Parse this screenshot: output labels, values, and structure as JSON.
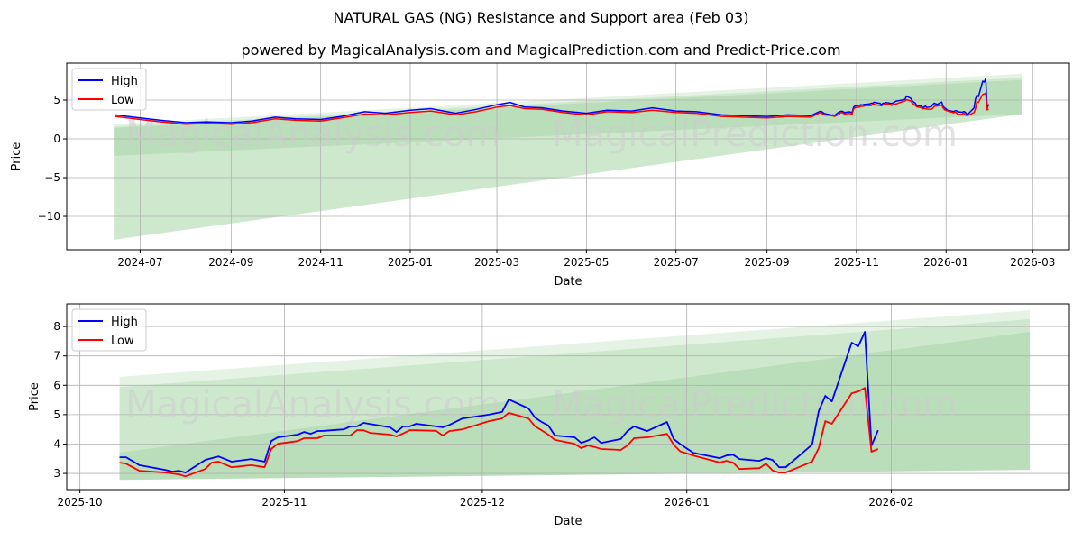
{
  "title": "NATURAL GAS (NG) Resistance and Support area (Feb 03)",
  "subtitle": "powered by MagicalAnalysis.com and MagicalPrediction.com and Predict-Price.com",
  "watermarks": [
    "MagicalAnalysis.com",
    "MagicalPrediction.com"
  ],
  "colors": {
    "high": "#0000ff",
    "low": "#ff0000",
    "band": "#2ca02c",
    "grid": "#b0b0b0",
    "watermark": "#cccccc"
  },
  "chart_data": [
    {
      "type": "line",
      "title": "",
      "xlabel": "Date",
      "ylabel": "Price",
      "xlim": [
        "2024-05-12",
        "2026-03-26"
      ],
      "ylim": [
        -14.3,
        9.77
      ],
      "xticks": [
        [
          "2024-07-01",
          "2024-07"
        ],
        [
          "2024-09-01",
          "2024-09"
        ],
        [
          "2024-11-01",
          "2024-11"
        ],
        [
          "2025-01-01",
          "2025-01"
        ],
        [
          "2025-03-01",
          "2025-03"
        ],
        [
          "2025-05-01",
          "2025-05"
        ],
        [
          "2025-07-01",
          "2025-07"
        ],
        [
          "2025-09-01",
          "2025-09"
        ],
        [
          "2025-11-01",
          "2025-11"
        ],
        [
          "2026-01-01",
          "2026-01"
        ],
        [
          "2026-03-01",
          "2026-03"
        ]
      ],
      "yticks": [
        [
          5,
          "5"
        ],
        [
          0,
          "0"
        ],
        [
          -5,
          "−5"
        ],
        [
          -10,
          "−10"
        ]
      ],
      "grid": true,
      "legend": {
        "position": "top-left",
        "entries": [
          "High",
          "Low"
        ]
      },
      "bands": [
        {
          "x": [
            "2024-06-13",
            "2026-02-22"
          ],
          "top": [
            1.9,
            8.4
          ],
          "bottom": [
            -13.0,
            3.2
          ]
        },
        {
          "x": [
            "2024-06-13",
            "2026-02-22"
          ],
          "top": [
            1.6,
            7.9
          ],
          "bottom": [
            -13.0,
            3.2
          ]
        },
        {
          "x": [
            "2024-06-13",
            "2026-02-22"
          ],
          "top": [
            1.4,
            7.6
          ],
          "bottom": [
            -2.2,
            3.2
          ]
        }
      ],
      "series_source": "history+detail"
    },
    {
      "type": "line",
      "title": "",
      "xlabel": "Date",
      "ylabel": "Price",
      "xlim": [
        "2025-09-29",
        "2026-02-28"
      ],
      "ylim": [
        2.45,
        8.77
      ],
      "xticks": [
        [
          "2025-10-01",
          "2025-10"
        ],
        [
          "2025-11-01",
          "2025-11"
        ],
        [
          "2025-12-01",
          "2025-12"
        ],
        [
          "2026-01-01",
          "2026-01"
        ],
        [
          "2026-02-01",
          "2026-02"
        ]
      ],
      "yticks": [
        [
          3,
          "3"
        ],
        [
          4,
          "4"
        ],
        [
          5,
          "5"
        ],
        [
          6,
          "6"
        ],
        [
          7,
          "7"
        ],
        [
          8,
          "8"
        ]
      ],
      "grid": true,
      "legend": {
        "position": "top-left",
        "entries": [
          "High",
          "Low"
        ]
      },
      "bands": [
        {
          "x": [
            "2025-10-07",
            "2026-02-22"
          ],
          "top": [
            6.29,
            8.55
          ],
          "bottom": [
            2.78,
            3.12
          ]
        },
        {
          "x": [
            "2025-10-07",
            "2026-02-22"
          ],
          "top": [
            5.94,
            8.25
          ],
          "bottom": [
            2.78,
            3.12
          ]
        },
        {
          "x": [
            "2025-10-07",
            "2026-02-22"
          ],
          "top": [
            3.71,
            7.82
          ],
          "bottom": [
            2.78,
            3.12
          ]
        }
      ],
      "series_source": "detail"
    }
  ],
  "history": {
    "x": [
      "2024-06-14",
      "2024-07-01",
      "2024-07-15",
      "2024-08-01",
      "2024-08-15",
      "2024-09-01",
      "2024-09-15",
      "2024-10-01",
      "2024-10-15",
      "2024-11-01",
      "2024-11-15",
      "2024-12-01",
      "2024-12-15",
      "2025-01-01",
      "2025-01-15",
      "2025-02-01",
      "2025-02-15",
      "2025-03-01",
      "2025-03-10",
      "2025-03-20",
      "2025-04-01",
      "2025-04-15",
      "2025-05-01",
      "2025-05-15",
      "2025-06-01",
      "2025-06-15",
      "2025-07-01",
      "2025-07-15",
      "2025-08-01",
      "2025-08-15",
      "2025-09-01",
      "2025-09-15",
      "2025-10-01"
    ],
    "high": [
      3.1,
      2.7,
      2.4,
      2.1,
      2.2,
      2.1,
      2.3,
      2.8,
      2.6,
      2.5,
      2.9,
      3.5,
      3.3,
      3.7,
      3.9,
      3.3,
      3.8,
      4.4,
      4.7,
      4.1,
      4.0,
      3.6,
      3.3,
      3.7,
      3.6,
      4.0,
      3.6,
      3.5,
      3.1,
      3.0,
      2.9,
      3.1,
      3.0
    ],
    "low": [
      2.9,
      2.5,
      2.2,
      1.9,
      2.0,
      1.9,
      2.1,
      2.6,
      2.4,
      2.3,
      2.7,
      3.2,
      3.1,
      3.4,
      3.6,
      3.1,
      3.5,
      4.1,
      4.3,
      3.9,
      3.8,
      3.4,
      3.1,
      3.5,
      3.4,
      3.7,
      3.4,
      3.3,
      2.9,
      2.8,
      2.7,
      2.9,
      2.8
    ]
  },
  "detail": {
    "x": [
      "2025-10-07",
      "2025-10-08",
      "2025-10-10",
      "2025-10-14",
      "2025-10-15",
      "2025-10-16",
      "2025-10-17",
      "2025-10-20",
      "2025-10-21",
      "2025-10-22",
      "2025-10-24",
      "2025-10-27",
      "2025-10-29",
      "2025-10-30",
      "2025-10-31",
      "2025-11-03",
      "2025-11-04",
      "2025-11-05",
      "2025-11-06",
      "2025-11-07",
      "2025-11-10",
      "2025-11-11",
      "2025-11-12",
      "2025-11-13",
      "2025-11-14",
      "2025-11-17",
      "2025-11-18",
      "2025-11-19",
      "2025-11-20",
      "2025-11-21",
      "2025-11-24",
      "2025-11-25",
      "2025-11-26",
      "2025-11-28",
      "2025-12-02",
      "2025-12-04",
      "2025-12-05",
      "2025-12-08",
      "2025-12-09",
      "2025-12-10",
      "2025-12-11",
      "2025-12-12",
      "2025-12-15",
      "2025-12-16",
      "2025-12-17",
      "2025-12-18",
      "2025-12-19",
      "2025-12-22",
      "2025-12-23",
      "2025-12-24",
      "2025-12-26",
      "2025-12-29",
      "2025-12-30",
      "2025-12-31",
      "2026-01-02",
      "2026-01-06",
      "2026-01-07",
      "2026-01-08",
      "2026-01-09",
      "2026-01-12",
      "2026-01-13",
      "2026-01-14",
      "2026-01-15",
      "2026-01-16",
      "2026-01-20",
      "2026-01-21",
      "2026-01-22",
      "2026-01-23",
      "2026-01-26",
      "2026-01-27",
      "2026-01-28",
      "2026-01-29",
      "2026-01-30"
    ],
    "high": [
      3.55,
      3.55,
      3.28,
      3.12,
      3.06,
      3.09,
      3.03,
      3.46,
      3.52,
      3.58,
      3.4,
      3.49,
      3.4,
      4.1,
      4.23,
      4.32,
      4.41,
      4.35,
      4.44,
      4.45,
      4.5,
      4.6,
      4.6,
      4.72,
      4.68,
      4.57,
      4.41,
      4.6,
      4.6,
      4.69,
      4.6,
      4.57,
      4.65,
      4.87,
      5.0,
      5.09,
      5.52,
      5.21,
      4.9,
      4.75,
      4.63,
      4.29,
      4.23,
      4.04,
      4.12,
      4.23,
      4.04,
      4.17,
      4.44,
      4.6,
      4.44,
      4.75,
      4.17,
      4.0,
      3.7,
      3.52,
      3.61,
      3.64,
      3.49,
      3.43,
      3.52,
      3.46,
      3.21,
      3.21,
      3.98,
      5.12,
      5.64,
      5.45,
      7.45,
      7.33,
      7.82,
      3.95,
      4.47
    ],
    "low": [
      3.37,
      3.33,
      3.09,
      3.03,
      3.0,
      2.97,
      2.9,
      3.15,
      3.37,
      3.4,
      3.21,
      3.28,
      3.21,
      3.83,
      4.01,
      4.1,
      4.2,
      4.2,
      4.2,
      4.29,
      4.29,
      4.29,
      4.47,
      4.47,
      4.38,
      4.32,
      4.26,
      4.36,
      4.47,
      4.47,
      4.45,
      4.29,
      4.44,
      4.5,
      4.78,
      4.87,
      5.06,
      4.87,
      4.6,
      4.47,
      4.32,
      4.14,
      4.01,
      3.86,
      3.95,
      3.9,
      3.83,
      3.8,
      3.95,
      4.2,
      4.23,
      4.35,
      3.98,
      3.75,
      3.61,
      3.37,
      3.43,
      3.37,
      3.15,
      3.18,
      3.33,
      3.1,
      3.03,
      3.03,
      3.4,
      3.86,
      4.78,
      4.69,
      5.73,
      5.79,
      5.91,
      3.74,
      3.83
    ]
  }
}
